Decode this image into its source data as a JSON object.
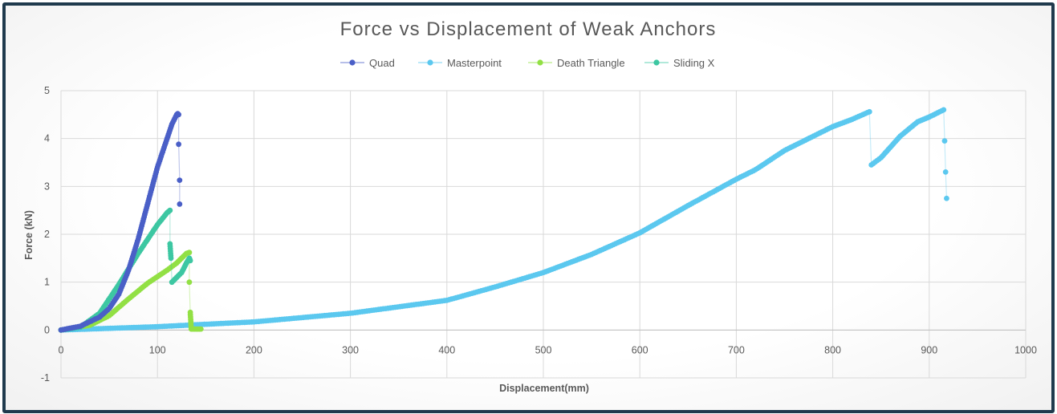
{
  "chart_data": {
    "type": "scatter",
    "title": "Force vs Displacement of Weak Anchors",
    "xlabel": "Displacement(mm)",
    "ylabel": "Force (kN)",
    "xlim": [
      0,
      1000
    ],
    "ylim": [
      -1,
      5
    ],
    "x_ticks": [
      "0",
      "100",
      "200",
      "300",
      "400",
      "500",
      "600",
      "700",
      "800",
      "900",
      "1000"
    ],
    "y_ticks": [
      "-1",
      "0",
      "1",
      "2",
      "3",
      "4",
      "5"
    ],
    "grid": true,
    "legend_position": "top",
    "series": [
      {
        "name": "Quad",
        "color": "#4a5fc7",
        "x": [
          0,
          20,
          40,
          50,
          60,
          70,
          80,
          90,
          100,
          110,
          115,
          120,
          121,
          122,
          122,
          123,
          123
        ],
        "y": [
          0,
          0.08,
          0.27,
          0.45,
          0.75,
          1.25,
          1.9,
          2.65,
          3.4,
          4.0,
          4.3,
          4.5,
          4.52,
          4.5,
          3.88,
          3.13,
          2.63
        ]
      },
      {
        "name": "Masterpoint",
        "color": "#5bc8ef",
        "x": [
          0,
          100,
          200,
          300,
          400,
          450,
          500,
          550,
          600,
          650,
          700,
          720,
          750,
          780,
          800,
          820,
          838,
          840,
          850,
          870,
          888,
          900,
          915,
          916,
          917,
          918
        ],
        "y": [
          0,
          0.07,
          0.17,
          0.35,
          0.62,
          0.9,
          1.2,
          1.58,
          2.03,
          2.6,
          3.15,
          3.35,
          3.75,
          4.05,
          4.25,
          4.4,
          4.56,
          3.45,
          3.6,
          4.05,
          4.35,
          4.45,
          4.6,
          3.95,
          3.3,
          2.75
        ]
      },
      {
        "name": "Death Triangle",
        "color": "#92e044",
        "x": [
          0,
          30,
          50,
          70,
          90,
          110,
          120,
          130,
          133,
          133,
          134,
          135,
          140,
          145
        ],
        "y": [
          0,
          0.1,
          0.3,
          0.65,
          0.98,
          1.25,
          1.4,
          1.6,
          1.62,
          1.0,
          0.37,
          0.02,
          0.02,
          0.02
        ]
      },
      {
        "name": "Sliding X",
        "color": "#3dc7a2",
        "x": [
          0,
          20,
          40,
          60,
          80,
          100,
          110,
          113,
          113,
          114,
          115,
          120,
          125,
          130,
          133,
          134
        ],
        "y": [
          0,
          0.06,
          0.35,
          0.95,
          1.6,
          2.2,
          2.45,
          2.5,
          1.8,
          1.5,
          1.0,
          1.1,
          1.2,
          1.4,
          1.5,
          1.45
        ]
      }
    ]
  }
}
